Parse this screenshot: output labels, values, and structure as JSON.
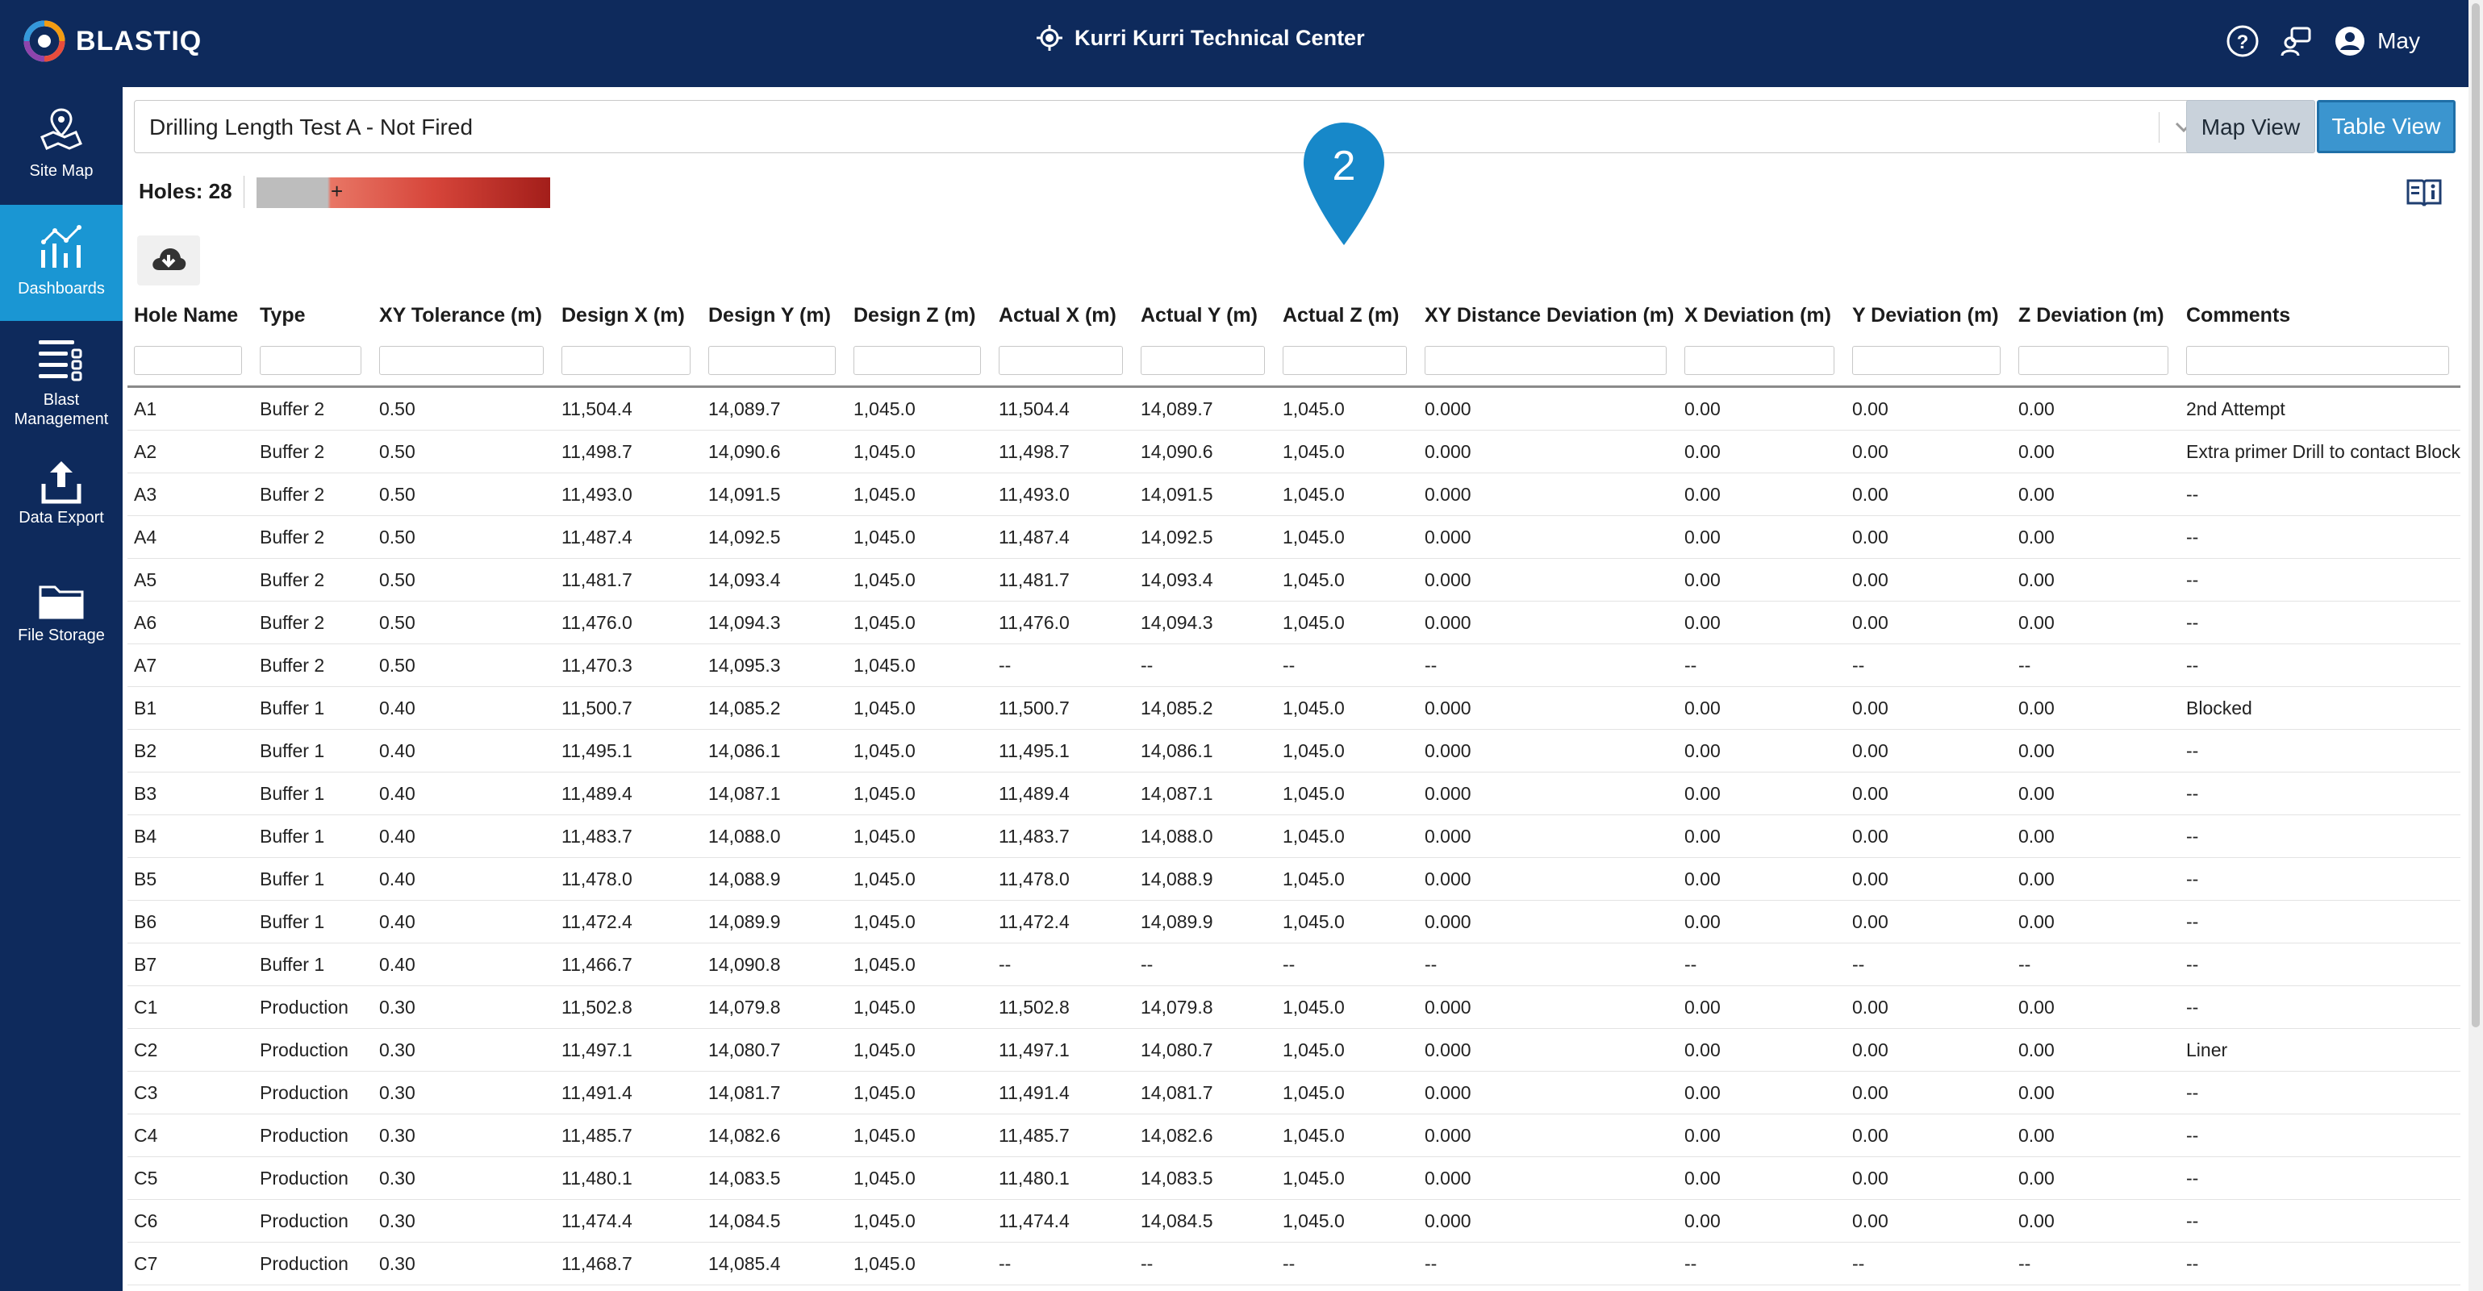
{
  "header": {
    "brand": "BLASTIQ",
    "site": "Kurri Kurri Technical Center",
    "user": "May",
    "icons": [
      "help-icon",
      "contact-support-icon",
      "user-account-icon"
    ]
  },
  "sidebar": {
    "items": [
      {
        "label": "Site Map",
        "icon": "site-map-icon"
      },
      {
        "label": "Dashboards",
        "icon": "dashboards-icon",
        "active": true
      },
      {
        "label": "Blast Management",
        "icon": "blast-management-icon"
      },
      {
        "label": "Data Export",
        "icon": "data-export-icon"
      },
      {
        "label": "File Storage",
        "icon": "file-storage-icon"
      }
    ]
  },
  "main": {
    "blast_selector": "Drilling Length Test A - Not Fired",
    "map_view_label": "Map View",
    "table_view_label": "Table View",
    "holes_label": "Holes: 28",
    "marker_number": "2"
  },
  "colors": {
    "navy": "#0e2a5c",
    "accent_blue": "#1a96d3",
    "table_view_button": "#3b95cf",
    "scale_low": "#e87665",
    "scale_high": "#a31e1a"
  },
  "table": {
    "columns": [
      "Hole Name",
      "Type",
      "XY Tolerance (m)",
      "Design X (m)",
      "Design Y (m)",
      "Design Z (m)",
      "Actual X (m)",
      "Actual Y (m)",
      "Actual Z (m)",
      "XY Distance Deviation (m)",
      "X Deviation (m)",
      "Y Deviation (m)",
      "Z Deviation (m)",
      "Comments"
    ],
    "rows": [
      [
        "A1",
        "Buffer 2",
        "0.50",
        "11,504.4",
        "14,089.7",
        "1,045.0",
        "11,504.4",
        "14,089.7",
        "1,045.0",
        "0.000",
        "0.00",
        "0.00",
        "0.00",
        "2nd Attempt"
      ],
      [
        "A2",
        "Buffer 2",
        "0.50",
        "11,498.7",
        "14,090.6",
        "1,045.0",
        "11,498.7",
        "14,090.6",
        "1,045.0",
        "0.000",
        "0.00",
        "0.00",
        "0.00",
        "Extra primer Drill to contact Blocked"
      ],
      [
        "A3",
        "Buffer 2",
        "0.50",
        "11,493.0",
        "14,091.5",
        "1,045.0",
        "11,493.0",
        "14,091.5",
        "1,045.0",
        "0.000",
        "0.00",
        "0.00",
        "0.00",
        "--"
      ],
      [
        "A4",
        "Buffer 2",
        "0.50",
        "11,487.4",
        "14,092.5",
        "1,045.0",
        "11,487.4",
        "14,092.5",
        "1,045.0",
        "0.000",
        "0.00",
        "0.00",
        "0.00",
        "--"
      ],
      [
        "A5",
        "Buffer 2",
        "0.50",
        "11,481.7",
        "14,093.4",
        "1,045.0",
        "11,481.7",
        "14,093.4",
        "1,045.0",
        "0.000",
        "0.00",
        "0.00",
        "0.00",
        "--"
      ],
      [
        "A6",
        "Buffer 2",
        "0.50",
        "11,476.0",
        "14,094.3",
        "1,045.0",
        "11,476.0",
        "14,094.3",
        "1,045.0",
        "0.000",
        "0.00",
        "0.00",
        "0.00",
        "--"
      ],
      [
        "A7",
        "Buffer 2",
        "0.50",
        "11,470.3",
        "14,095.3",
        "1,045.0",
        "--",
        "--",
        "--",
        "--",
        "--",
        "--",
        "--",
        "--"
      ],
      [
        "B1",
        "Buffer 1",
        "0.40",
        "11,500.7",
        "14,085.2",
        "1,045.0",
        "11,500.7",
        "14,085.2",
        "1,045.0",
        "0.000",
        "0.00",
        "0.00",
        "0.00",
        "Blocked"
      ],
      [
        "B2",
        "Buffer 1",
        "0.40",
        "11,495.1",
        "14,086.1",
        "1,045.0",
        "11,495.1",
        "14,086.1",
        "1,045.0",
        "0.000",
        "0.00",
        "0.00",
        "0.00",
        "--"
      ],
      [
        "B3",
        "Buffer 1",
        "0.40",
        "11,489.4",
        "14,087.1",
        "1,045.0",
        "11,489.4",
        "14,087.1",
        "1,045.0",
        "0.000",
        "0.00",
        "0.00",
        "0.00",
        "--"
      ],
      [
        "B4",
        "Buffer 1",
        "0.40",
        "11,483.7",
        "14,088.0",
        "1,045.0",
        "11,483.7",
        "14,088.0",
        "1,045.0",
        "0.000",
        "0.00",
        "0.00",
        "0.00",
        "--"
      ],
      [
        "B5",
        "Buffer 1",
        "0.40",
        "11,478.0",
        "14,088.9",
        "1,045.0",
        "11,478.0",
        "14,088.9",
        "1,045.0",
        "0.000",
        "0.00",
        "0.00",
        "0.00",
        "--"
      ],
      [
        "B6",
        "Buffer 1",
        "0.40",
        "11,472.4",
        "14,089.9",
        "1,045.0",
        "11,472.4",
        "14,089.9",
        "1,045.0",
        "0.000",
        "0.00",
        "0.00",
        "0.00",
        "--"
      ],
      [
        "B7",
        "Buffer 1",
        "0.40",
        "11,466.7",
        "14,090.8",
        "1,045.0",
        "--",
        "--",
        "--",
        "--",
        "--",
        "--",
        "--",
        "--"
      ],
      [
        "C1",
        "Production",
        "0.30",
        "11,502.8",
        "14,079.8",
        "1,045.0",
        "11,502.8",
        "14,079.8",
        "1,045.0",
        "0.000",
        "0.00",
        "0.00",
        "0.00",
        "--"
      ],
      [
        "C2",
        "Production",
        "0.30",
        "11,497.1",
        "14,080.7",
        "1,045.0",
        "11,497.1",
        "14,080.7",
        "1,045.0",
        "0.000",
        "0.00",
        "0.00",
        "0.00",
        "Liner"
      ],
      [
        "C3",
        "Production",
        "0.30",
        "11,491.4",
        "14,081.7",
        "1,045.0",
        "11,491.4",
        "14,081.7",
        "1,045.0",
        "0.000",
        "0.00",
        "0.00",
        "0.00",
        "--"
      ],
      [
        "C4",
        "Production",
        "0.30",
        "11,485.7",
        "14,082.6",
        "1,045.0",
        "11,485.7",
        "14,082.6",
        "1,045.0",
        "0.000",
        "0.00",
        "0.00",
        "0.00",
        "--"
      ],
      [
        "C5",
        "Production",
        "0.30",
        "11,480.1",
        "14,083.5",
        "1,045.0",
        "11,480.1",
        "14,083.5",
        "1,045.0",
        "0.000",
        "0.00",
        "0.00",
        "0.00",
        "--"
      ],
      [
        "C6",
        "Production",
        "0.30",
        "11,474.4",
        "14,084.5",
        "1,045.0",
        "11,474.4",
        "14,084.5",
        "1,045.0",
        "0.000",
        "0.00",
        "0.00",
        "0.00",
        "--"
      ],
      [
        "C7",
        "Production",
        "0.30",
        "11,468.7",
        "14,085.4",
        "1,045.0",
        "--",
        "--",
        "--",
        "--",
        "--",
        "--",
        "--",
        "--"
      ]
    ]
  }
}
